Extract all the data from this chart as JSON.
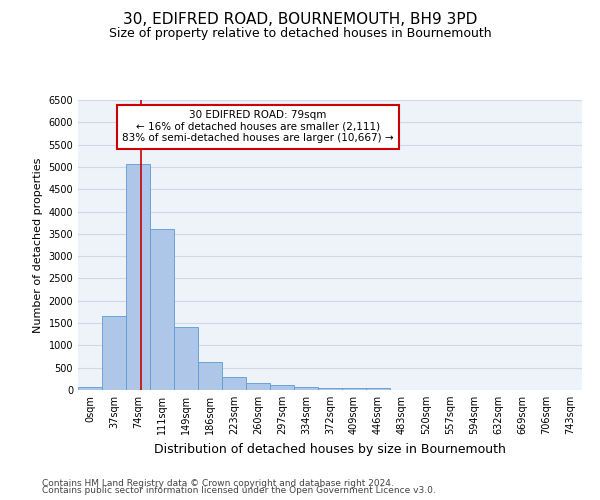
{
  "title1": "30, EDIFRED ROAD, BOURNEMOUTH, BH9 3PD",
  "title2": "Size of property relative to detached houses in Bournemouth",
  "xlabel": "Distribution of detached houses by size in Bournemouth",
  "ylabel": "Number of detached properties",
  "categories": [
    "0sqm",
    "37sqm",
    "74sqm",
    "111sqm",
    "149sqm",
    "186sqm",
    "223sqm",
    "260sqm",
    "297sqm",
    "334sqm",
    "372sqm",
    "409sqm",
    "446sqm",
    "483sqm",
    "520sqm",
    "557sqm",
    "594sqm",
    "632sqm",
    "669sqm",
    "706sqm",
    "743sqm"
  ],
  "bar_values": [
    70,
    1650,
    5060,
    3600,
    1420,
    620,
    300,
    150,
    105,
    75,
    55,
    55,
    55,
    0,
    0,
    0,
    0,
    0,
    0,
    0,
    0
  ],
  "bar_color": "#aec6e8",
  "bar_edge_color": "#5b9bd5",
  "grid_color": "#d0d8e8",
  "background_color": "#eef2f9",
  "annotation_box_text": "30 EDIFRED ROAD: 79sqm\n← 16% of detached houses are smaller (2,111)\n83% of semi-detached houses are larger (10,667) →",
  "annotation_box_color": "#ffffff",
  "annotation_box_edge_color": "#cc0000",
  "red_line_x": 2.13,
  "red_line_color": "#cc0000",
  "ylim": [
    0,
    6500
  ],
  "yticks": [
    0,
    500,
    1000,
    1500,
    2000,
    2500,
    3000,
    3500,
    4000,
    4500,
    5000,
    5500,
    6000,
    6500
  ],
  "footer1": "Contains HM Land Registry data © Crown copyright and database right 2024.",
  "footer2": "Contains public sector information licensed under the Open Government Licence v3.0.",
  "title1_fontsize": 11,
  "title2_fontsize": 9,
  "xlabel_fontsize": 9,
  "ylabel_fontsize": 8,
  "tick_fontsize": 7,
  "annotation_fontsize": 7.5,
  "footer_fontsize": 6.5
}
